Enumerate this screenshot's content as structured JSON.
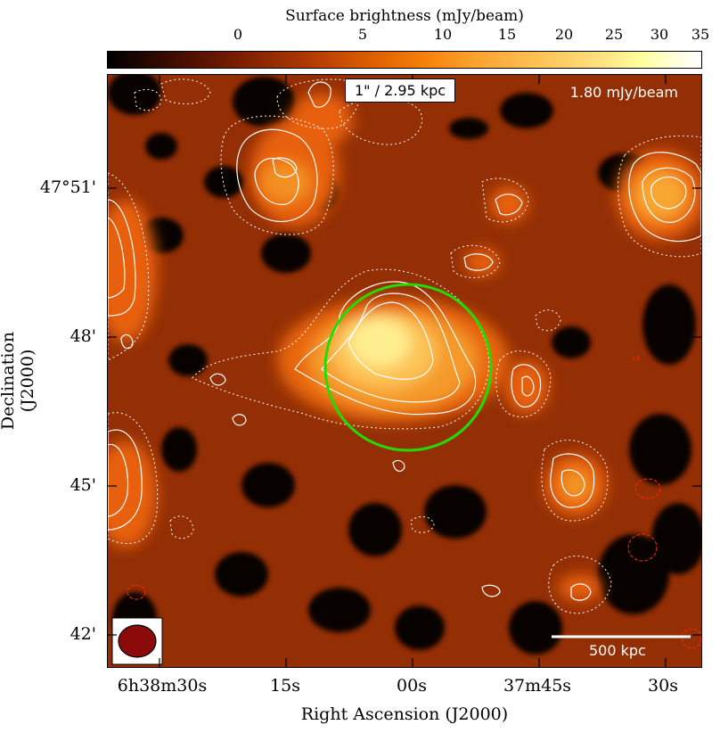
{
  "colorbar": {
    "title": "Surface brightness (mJy/beam)",
    "ticks": [
      "0",
      "5",
      "10",
      "15",
      "20",
      "25",
      "30",
      "35"
    ]
  },
  "map": {
    "scale_label": "1\" / 2.95 kpc",
    "rms_label": "1.80 mJy/beam",
    "scalebar_label": "500 kpc"
  },
  "axes": {
    "ylabel": "Declination (J2000)",
    "xlabel": "Right Ascension (J2000)",
    "yticks": [
      "47°51'",
      "48'",
      "45'",
      "42'"
    ],
    "xticks": [
      "6h38m30s",
      "15s",
      "00s",
      "37m45s",
      "30s"
    ]
  },
  "colors": {
    "circle": "#22dd00",
    "contour_pos": "#ffffff",
    "contour_neg": "#ff2a00"
  }
}
